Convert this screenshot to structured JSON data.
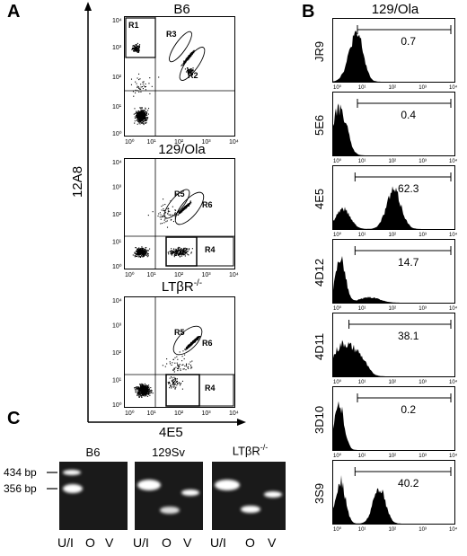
{
  "panels": {
    "a": "A",
    "b": "B",
    "c": "C"
  },
  "panel_a": {
    "y_axis_label": "12A8",
    "x_axis_label": "4E5",
    "plots": [
      {
        "title": "B6",
        "regions": [
          "R1",
          "R3",
          "R2"
        ]
      },
      {
        "title": "129/Ola",
        "regions": [
          "R5",
          "R6",
          "R4"
        ]
      },
      {
        "title": "LTβR",
        "title_sup": "-/-",
        "regions": [
          "R5",
          "R6",
          "R4"
        ]
      }
    ],
    "tick_labels": [
      "10⁰",
      "10¹",
      "10²",
      "10³",
      "10⁴"
    ]
  },
  "panel_b": {
    "title": "129/Ola",
    "histograms": [
      {
        "label": "JR9",
        "value": "0.7"
      },
      {
        "label": "5E6",
        "value": "0.4"
      },
      {
        "label": "4E5",
        "value": "62.3"
      },
      {
        "label": "4D12",
        "value": "14.7"
      },
      {
        "label": "4D11",
        "value": "38.1"
      },
      {
        "label": "3D10",
        "value": "0.2"
      },
      {
        "label": "3S9",
        "value": "40.2"
      }
    ]
  },
  "panel_c": {
    "gels": [
      {
        "title": "B6",
        "title_sup": ""
      },
      {
        "title": "129Sv",
        "title_sup": ""
      },
      {
        "title": "LTβR",
        "title_sup": "-/-"
      }
    ],
    "size_markers": [
      "434 bp",
      "356 bp"
    ],
    "lane_labels": [
      "U/I",
      "O",
      "V"
    ]
  }
}
